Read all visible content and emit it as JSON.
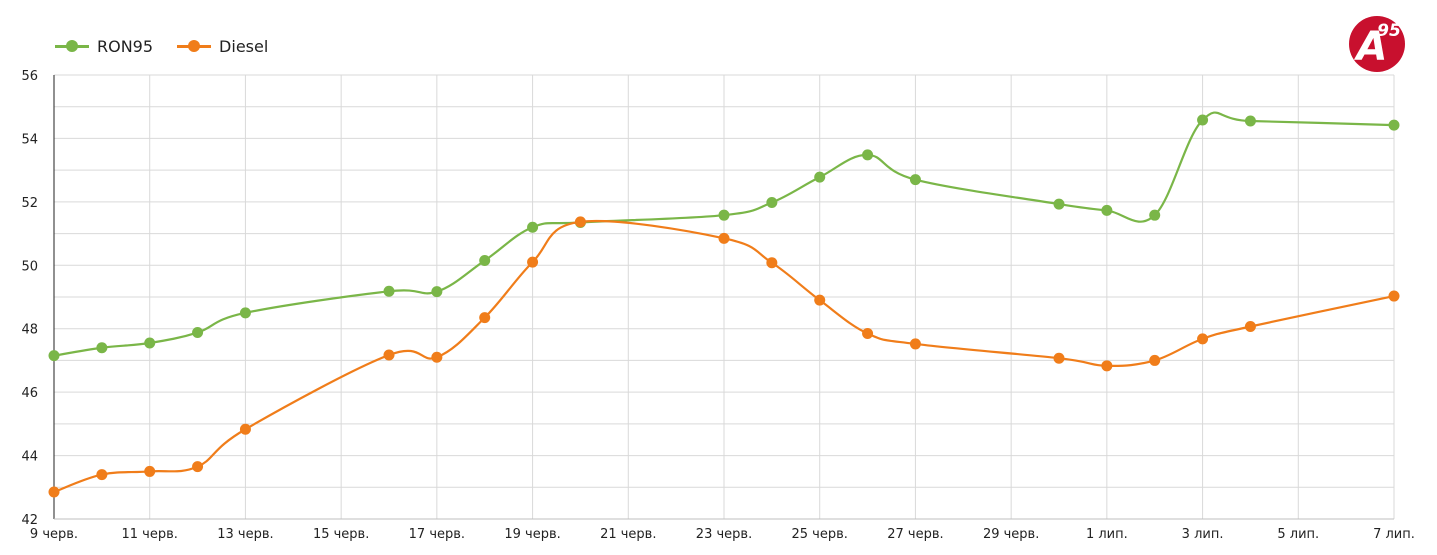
{
  "logo": {
    "text": "A",
    "superscript": "95",
    "color": "#c8102e"
  },
  "chart_data": {
    "type": "line",
    "grid": true,
    "legend_position": "top-left",
    "x_ticks": [
      "9 черв.",
      "11 черв.",
      "13 черв.",
      "15 черв.",
      "17 черв.",
      "19 черв.",
      "21 черв.",
      "23 черв.",
      "25 черв.",
      "27 черв.",
      "29 черв.",
      "1 лип.",
      "3 лип.",
      "5 лип.",
      "7 лип."
    ],
    "y_ticks": [
      "42",
      "44",
      "46",
      "48",
      "50",
      "52",
      "54",
      "56"
    ],
    "ylim": [
      42,
      56
    ],
    "x": [
      "9 черв.",
      "10 черв.",
      "11 черв.",
      "12 черв.",
      "13 черв.",
      "16 черв.",
      "17 черв.",
      "18 черв.",
      "19 черв.",
      "20 черв.",
      "23 черв.",
      "24 черв.",
      "25 черв.",
      "26 черв.",
      "27 черв.",
      "30 черв.",
      "1 лип.",
      "2 лип.",
      "3 лип.",
      "4 лип.",
      "7 лип."
    ],
    "x_day_index": [
      0,
      1,
      2,
      3,
      4,
      7,
      8,
      9,
      10,
      11,
      14,
      15,
      16,
      17,
      18,
      21,
      22,
      23,
      24,
      25,
      28
    ],
    "series": [
      {
        "name": "RON95",
        "color": "#7ab648",
        "values": [
          47.15,
          47.4,
          47.55,
          47.88,
          48.5,
          49.18,
          49.17,
          50.15,
          51.2,
          51.35,
          51.58,
          51.98,
          52.78,
          53.48,
          52.7,
          51.93,
          51.73,
          51.58,
          54.58,
          54.55,
          54.42
        ]
      },
      {
        "name": "Diesel",
        "color": "#f07d1a",
        "values": [
          42.85,
          43.4,
          43.5,
          43.65,
          44.83,
          47.17,
          47.1,
          48.35,
          50.1,
          51.37,
          50.85,
          50.08,
          48.9,
          47.85,
          47.52,
          47.07,
          46.83,
          47.0,
          47.68,
          48.07,
          49.03
        ]
      }
    ]
  }
}
